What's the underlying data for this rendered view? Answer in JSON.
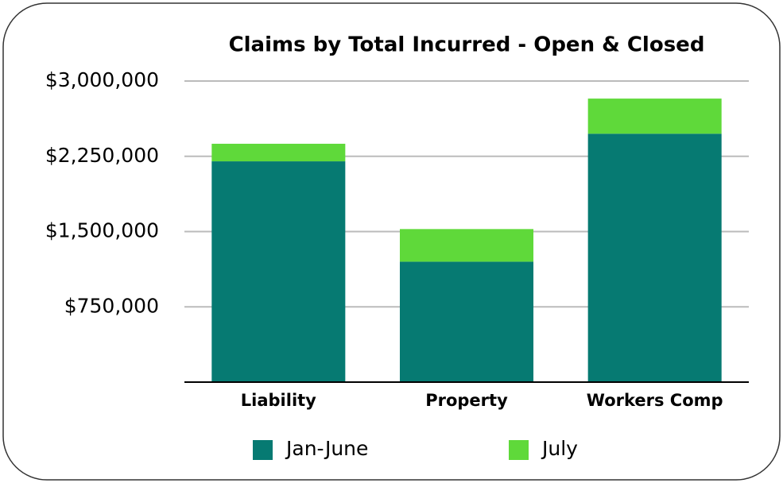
{
  "chart_data": {
    "type": "stacked_bar",
    "title": "Claims by Total Incurred - Open & Closed",
    "categories": [
      "Liability",
      "Property",
      "Workers Comp"
    ],
    "series": [
      {
        "name": "Jan-June",
        "color": "#067a72",
        "values": [
          2200000,
          1200000,
          2475000
        ]
      },
      {
        "name": "July",
        "color": "#5fd93a",
        "values": [
          175000,
          325000,
          350000
        ]
      }
    ],
    "ylim": [
      0,
      3000000
    ],
    "yticks": [
      {
        "value": 750000,
        "label": "$750,000"
      },
      {
        "value": 1500000,
        "label": "$1,500,000"
      },
      {
        "value": 2250000,
        "label": "$2,250,000"
      },
      {
        "value": 3000000,
        "label": "$3,000,000"
      }
    ],
    "grid": true,
    "legend": "bottom"
  }
}
